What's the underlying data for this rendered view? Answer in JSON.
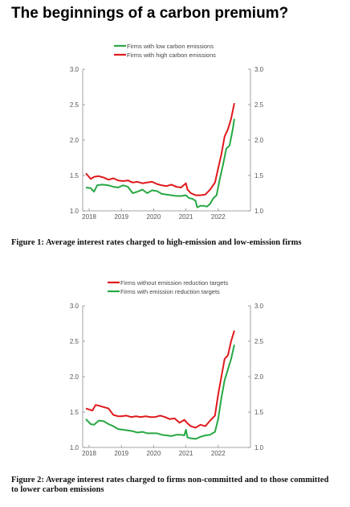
{
  "title": "The beginnings of a carbon premium?",
  "figures": [
    {
      "caption": "Figure 1: Average interest rates charged to high-emission and low-emission firms"
    },
    {
      "caption": "Figure 2: Average interest rates charged to firms non-committed and to those committed to lower carbon emissions"
    }
  ],
  "chart_data": [
    {
      "type": "line",
      "ylim": [
        1.0,
        3.0
      ],
      "yticks": [
        "1.0",
        "1.5",
        "2.0",
        "2.5",
        "3.0"
      ],
      "xlim": [
        2017.8,
        2023.0
      ],
      "xticks": [
        2018,
        2019,
        2020,
        2021,
        2022
      ],
      "xticklabels": [
        "2018",
        "2019",
        "2020",
        "2021",
        "2022"
      ],
      "legend_position": "top-center",
      "series": [
        {
          "name": "Firms with low carbon emissions",
          "color": "#27a844",
          "x": [
            2017.9,
            2018.05,
            2018.15,
            2018.25,
            2018.4,
            2018.6,
            2018.75,
            2018.9,
            2019.05,
            2019.2,
            2019.35,
            2019.5,
            2019.65,
            2019.8,
            2019.95,
            2020.1,
            2020.25,
            2020.4,
            2020.55,
            2020.7,
            2020.85,
            2021.0,
            2021.1,
            2021.2,
            2021.3,
            2021.35,
            2021.45,
            2021.55,
            2021.65,
            2021.75,
            2021.85,
            2021.95,
            2022.05,
            2022.15,
            2022.25,
            2022.35,
            2022.45,
            2022.5
          ],
          "values": [
            1.33,
            1.32,
            1.27,
            1.36,
            1.37,
            1.36,
            1.34,
            1.33,
            1.36,
            1.34,
            1.25,
            1.27,
            1.3,
            1.25,
            1.29,
            1.28,
            1.24,
            1.23,
            1.22,
            1.21,
            1.21,
            1.22,
            1.18,
            1.17,
            1.14,
            1.05,
            1.07,
            1.07,
            1.06,
            1.1,
            1.18,
            1.22,
            1.45,
            1.65,
            1.88,
            1.92,
            2.15,
            2.3
          ]
        },
        {
          "name": "Firms with high carbon emissions",
          "color": "#e0191c",
          "x": [
            2017.9,
            2018.05,
            2018.15,
            2018.3,
            2018.45,
            2018.6,
            2018.75,
            2018.9,
            2019.05,
            2019.2,
            2019.35,
            2019.5,
            2019.65,
            2019.8,
            2019.95,
            2020.1,
            2020.25,
            2020.4,
            2020.55,
            2020.7,
            2020.85,
            2021.0,
            2021.05,
            2021.15,
            2021.3,
            2021.45,
            2021.6,
            2021.75,
            2021.9,
            2022.0,
            2022.1,
            2022.2,
            2022.3,
            2022.4,
            2022.5
          ],
          "values": [
            1.53,
            1.45,
            1.48,
            1.49,
            1.47,
            1.44,
            1.46,
            1.43,
            1.42,
            1.43,
            1.4,
            1.41,
            1.39,
            1.4,
            1.41,
            1.38,
            1.36,
            1.35,
            1.37,
            1.34,
            1.33,
            1.39,
            1.3,
            1.25,
            1.22,
            1.22,
            1.23,
            1.3,
            1.4,
            1.6,
            1.8,
            2.05,
            2.15,
            2.3,
            2.52
          ]
        }
      ]
    },
    {
      "type": "line",
      "ylim": [
        1.0,
        3.0
      ],
      "yticks": [
        "1.0",
        "1.5",
        "2.0",
        "2.5",
        "3.0"
      ],
      "xlim": [
        2017.8,
        2023.0
      ],
      "xticks": [
        2018,
        2019,
        2020,
        2021,
        2022
      ],
      "xticklabels": [
        "2018",
        "2019",
        "2020",
        "2021",
        "2022"
      ],
      "legend_position": "top-center",
      "series": [
        {
          "name": "Firms without emission reduction targets",
          "color": "#e0191c",
          "x": [
            2017.9,
            2018.1,
            2018.2,
            2018.3,
            2018.45,
            2018.6,
            2018.75,
            2018.9,
            2019.0,
            2019.15,
            2019.3,
            2019.45,
            2019.6,
            2019.75,
            2019.9,
            2020.05,
            2020.2,
            2020.35,
            2020.5,
            2020.65,
            2020.8,
            2020.95,
            2021.05,
            2021.15,
            2021.3,
            2021.45,
            2021.6,
            2021.75,
            2021.9,
            2022.0,
            2022.1,
            2022.2,
            2022.3,
            2022.4,
            2022.5
          ],
          "values": [
            1.55,
            1.52,
            1.6,
            1.59,
            1.57,
            1.55,
            1.46,
            1.44,
            1.44,
            1.45,
            1.43,
            1.44,
            1.43,
            1.44,
            1.43,
            1.43,
            1.45,
            1.43,
            1.4,
            1.41,
            1.35,
            1.39,
            1.34,
            1.3,
            1.28,
            1.32,
            1.3,
            1.38,
            1.45,
            1.75,
            2.0,
            2.25,
            2.3,
            2.5,
            2.65
          ]
        },
        {
          "name": "Firms with emission reduction targets",
          "color": "#27a844",
          "x": [
            2017.9,
            2018.05,
            2018.15,
            2018.3,
            2018.45,
            2018.6,
            2018.75,
            2018.9,
            2019.05,
            2019.2,
            2019.35,
            2019.5,
            2019.65,
            2019.8,
            2019.95,
            2020.1,
            2020.25,
            2020.4,
            2020.55,
            2020.7,
            2020.85,
            2020.95,
            2021.0,
            2021.05,
            2021.15,
            2021.3,
            2021.45,
            2021.6,
            2021.75,
            2021.9,
            2022.0,
            2022.1,
            2022.2,
            2022.3,
            2022.4,
            2022.5
          ],
          "values": [
            1.4,
            1.33,
            1.32,
            1.38,
            1.37,
            1.33,
            1.3,
            1.26,
            1.25,
            1.24,
            1.23,
            1.21,
            1.22,
            1.2,
            1.2,
            1.2,
            1.18,
            1.17,
            1.16,
            1.18,
            1.18,
            1.17,
            1.25,
            1.14,
            1.13,
            1.12,
            1.15,
            1.17,
            1.18,
            1.22,
            1.4,
            1.7,
            1.95,
            2.1,
            2.25,
            2.45
          ]
        }
      ]
    }
  ]
}
